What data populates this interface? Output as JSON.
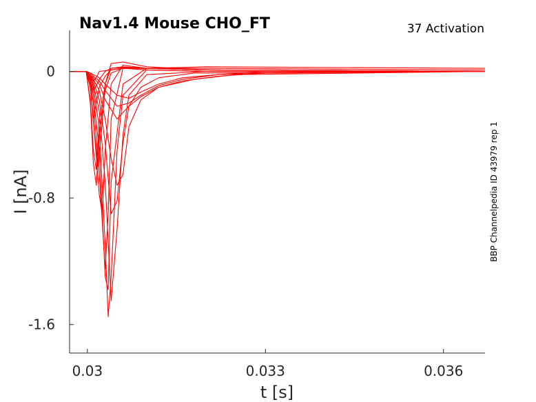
{
  "chart_data": {
    "type": "line",
    "title": "Nav1.4  Mouse  CHO_FT",
    "annotation": "37  Activation",
    "side_label": "BBP Channelpedia ID 43979 rep 1",
    "xlabel": "t [s]",
    "ylabel": "I [nA]",
    "xlim": [
      0.0297,
      0.0367
    ],
    "ylim": [
      -1.78,
      0.26
    ],
    "xticks": [
      0.03,
      0.033,
      0.036
    ],
    "xtick_labels": [
      "0.03",
      "0.033",
      "0.036"
    ],
    "yticks": [
      0,
      -0.8,
      -1.6
    ],
    "ytick_labels": [
      "0",
      "-0.8",
      "-1.6"
    ],
    "grid": false,
    "legend": "none",
    "color": "#ff0000",
    "series": [
      {
        "x": [
          0.0297,
          0.02998,
          0.03005,
          0.0301,
          0.03015,
          0.0302,
          0.0303,
          0.0304,
          0.0306,
          0.031,
          0.032,
          0.0367
        ],
        "values": [
          0.0,
          0.0,
          -0.03,
          -0.06,
          -0.04,
          0.0,
          0.005,
          0.01,
          0.02,
          0.02,
          0.03,
          0.02
        ]
      },
      {
        "x": [
          0.0297,
          0.02998,
          0.03005,
          0.0301,
          0.03015,
          0.0302,
          0.0303,
          0.0304,
          0.0306,
          0.031,
          0.032,
          0.0367
        ],
        "values": [
          0.0,
          0.0,
          -0.06,
          -0.12,
          -0.09,
          -0.05,
          0.0,
          0.02,
          0.025,
          0.02,
          0.01,
          0.0
        ]
      },
      {
        "x": [
          0.0297,
          0.02998,
          0.03005,
          0.0301,
          0.03015,
          0.0302,
          0.0303,
          0.0304,
          0.0306,
          0.031,
          0.032,
          0.0367
        ],
        "values": [
          0.0,
          0.0,
          -0.1,
          -0.3,
          -0.2,
          -0.1,
          -0.03,
          0.01,
          0.02,
          0.02,
          0.02,
          0.01
        ]
      },
      {
        "x": [
          0.0297,
          0.02998,
          0.03005,
          0.0301,
          0.03015,
          0.0302,
          0.0303,
          0.0304,
          0.0306,
          0.031,
          0.032,
          0.0367
        ],
        "values": [
          0.0,
          0.0,
          -0.2,
          -0.58,
          -0.72,
          -0.4,
          -0.12,
          -0.01,
          0.02,
          0.01,
          0.0,
          0.0
        ]
      },
      {
        "x": [
          0.0297,
          0.02998,
          0.03005,
          0.0301,
          0.03015,
          0.0302,
          0.0303,
          0.0304,
          0.0306,
          0.031,
          0.032,
          0.0367
        ],
        "values": [
          0.0,
          0.0,
          -0.18,
          -0.5,
          -0.62,
          -0.32,
          -0.08,
          0.02,
          0.03,
          0.02,
          0.01,
          0.0
        ]
      },
      {
        "x": [
          0.0297,
          0.02998,
          0.03005,
          0.0301,
          0.03018,
          0.03025,
          0.0303,
          0.0304,
          0.0306,
          0.031,
          0.032,
          0.0367
        ],
        "values": [
          0.0,
          0.0,
          -0.1,
          -0.32,
          -0.6,
          -0.32,
          -0.08,
          0.05,
          0.06,
          0.03,
          0.01,
          0.0
        ]
      },
      {
        "x": [
          0.0297,
          0.02998,
          0.03005,
          0.0301,
          0.0302,
          0.03025,
          0.0303,
          0.0304,
          0.0306,
          0.031,
          0.032,
          0.0367
        ],
        "values": [
          0.0,
          0.0,
          -0.08,
          -0.3,
          -0.78,
          -0.9,
          -0.5,
          -0.08,
          0.04,
          0.02,
          0.01,
          0.0
        ]
      },
      {
        "x": [
          0.0297,
          0.02998,
          0.03005,
          0.0301,
          0.0302,
          0.0303,
          0.03035,
          0.0304,
          0.0306,
          0.031,
          0.032,
          0.0367
        ],
        "values": [
          0.0,
          0.0,
          -0.06,
          -0.2,
          -0.65,
          -1.25,
          -0.9,
          -0.3,
          0.02,
          0.02,
          0.01,
          0.0
        ]
      },
      {
        "x": [
          0.0297,
          0.02998,
          0.03005,
          0.0301,
          0.0302,
          0.0303,
          0.03035,
          0.0304,
          0.0306,
          0.031,
          0.032,
          0.0367
        ],
        "values": [
          0.0,
          0.0,
          -0.05,
          -0.15,
          -0.5,
          -1.3,
          -1.38,
          -0.7,
          -0.08,
          0.02,
          0.01,
          0.0
        ]
      },
      {
        "x": [
          0.0297,
          0.02998,
          0.03005,
          0.0301,
          0.0302,
          0.0303,
          0.03035,
          0.0304,
          0.0305,
          0.0306,
          0.031,
          0.032,
          0.0367
        ],
        "values": [
          0.0,
          0.0,
          -0.04,
          -0.1,
          -0.35,
          -1.1,
          -1.55,
          -1.3,
          -0.5,
          -0.15,
          0.01,
          0.0,
          0.0
        ]
      },
      {
        "x": [
          0.0297,
          0.02998,
          0.03005,
          0.0301,
          0.0302,
          0.0303,
          0.0304,
          0.0305,
          0.0306,
          0.0307,
          0.031,
          0.032,
          0.0367
        ],
        "values": [
          0.0,
          0.0,
          -0.03,
          -0.08,
          -0.25,
          -0.7,
          -1.45,
          -1.0,
          -0.4,
          -0.15,
          -0.02,
          0.0,
          0.0
        ]
      },
      {
        "x": [
          0.0297,
          0.02998,
          0.03005,
          0.0301,
          0.0302,
          0.0303,
          0.0304,
          0.0305,
          0.0306,
          0.0307,
          0.0309,
          0.0312,
          0.0318,
          0.0367
        ],
        "values": [
          0.0,
          0.0,
          -0.03,
          -0.06,
          -0.18,
          -0.45,
          -0.9,
          -0.82,
          -0.45,
          -0.22,
          -0.1,
          -0.04,
          -0.01,
          0.0
        ]
      },
      {
        "x": [
          0.0297,
          0.02998,
          0.03005,
          0.0301,
          0.0302,
          0.0303,
          0.0304,
          0.0305,
          0.0306,
          0.0307,
          0.0309,
          0.0312,
          0.0318,
          0.0325,
          0.0367
        ],
        "values": [
          0.0,
          0.0,
          -0.02,
          -0.05,
          -0.12,
          -0.3,
          -0.55,
          -0.72,
          -0.65,
          -0.35,
          -0.18,
          -0.1,
          -0.05,
          -0.02,
          0.0
        ]
      },
      {
        "x": [
          0.0297,
          0.02998,
          0.03005,
          0.0301,
          0.0302,
          0.0303,
          0.0305,
          0.0307,
          0.0309,
          0.0312,
          0.0316,
          0.0322,
          0.033,
          0.0367
        ],
        "values": [
          0.0,
          0.0,
          -0.02,
          -0.04,
          -0.08,
          -0.18,
          -0.3,
          -0.22,
          -0.16,
          -0.1,
          -0.06,
          -0.03,
          -0.01,
          0.0
        ]
      },
      {
        "x": [
          0.0297,
          0.02998,
          0.03005,
          0.0301,
          0.0302,
          0.0303,
          0.0305,
          0.0307,
          0.0309,
          0.0312,
          0.0316,
          0.0322,
          0.033,
          0.0367
        ],
        "values": [
          0.0,
          0.0,
          -0.01,
          -0.03,
          -0.06,
          -0.12,
          -0.22,
          -0.2,
          -0.15,
          -0.09,
          -0.05,
          -0.02,
          -0.01,
          0.0
        ]
      },
      {
        "x": [
          0.0297,
          0.02998,
          0.03005,
          0.0301,
          0.0302,
          0.0303,
          0.0305,
          0.0307,
          0.0309,
          0.0312,
          0.0316,
          0.0322,
          0.033,
          0.0367
        ],
        "values": [
          0.0,
          0.0,
          -0.01,
          -0.02,
          -0.04,
          -0.08,
          -0.15,
          -0.17,
          -0.13,
          -0.08,
          -0.04,
          -0.02,
          0.0,
          0.0
        ]
      }
    ]
  }
}
